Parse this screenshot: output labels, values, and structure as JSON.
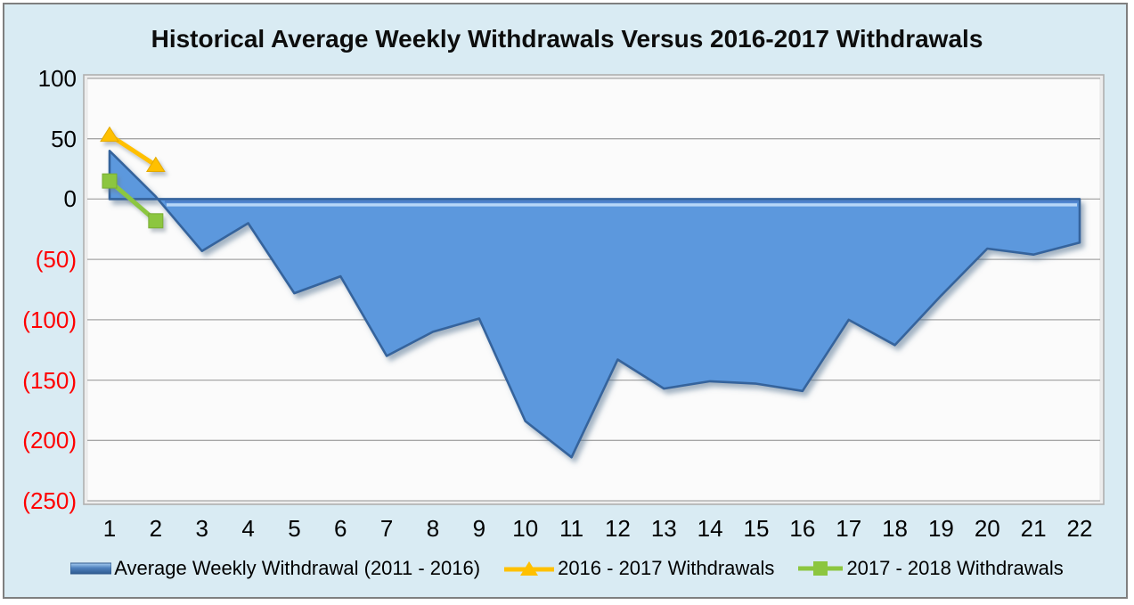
{
  "title": "Historical Average Weekly Withdrawals Versus 2016-2017 Withdrawals",
  "colors": {
    "chart_background": "#d9ebf3",
    "chart_border": "#7f7f7f",
    "plot_background": "#fbfbfb",
    "plot_border": "#b0b0b0",
    "gridline": "#a6a6a6",
    "area_fill": "#5b98dd",
    "area_edge": "#36649c",
    "area_highlight": "#b8d7f8",
    "series_2016_2017": "#ffc000",
    "series_2017_2018": "#8cc63f",
    "ylabel_positive": "#000000",
    "ylabel_negative": "#fe0000"
  },
  "chart_data": {
    "type": "area",
    "title": "Historical Average Weekly Withdrawals Versus 2016-2017 Withdrawals",
    "xlabel": "",
    "ylabel": "",
    "x": [
      1,
      2,
      3,
      4,
      5,
      6,
      7,
      8,
      9,
      10,
      11,
      12,
      13,
      14,
      15,
      16,
      17,
      18,
      19,
      20,
      21,
      22
    ],
    "ylim": [
      -250,
      100
    ],
    "grid": true,
    "legend_position": "bottom",
    "yticks": [
      {
        "value": 100,
        "label": "100"
      },
      {
        "value": 50,
        "label": "50"
      },
      {
        "value": 0,
        "label": "0"
      },
      {
        "value": -50,
        "label": "(50)"
      },
      {
        "value": -100,
        "label": "(100)"
      },
      {
        "value": -150,
        "label": "(150)"
      },
      {
        "value": -200,
        "label": "(200)"
      },
      {
        "value": -250,
        "label": "(250)"
      }
    ],
    "series": [
      {
        "name": "Average Weekly Withdrawal (2011 - 2016)",
        "type": "area",
        "marker": "none",
        "color": "#5b98dd",
        "values": [
          40,
          2,
          -43,
          -20,
          -78,
          -64,
          -130,
          -110,
          -99,
          -184,
          -214,
          -133,
          -157,
          -151,
          -153,
          -159,
          -100,
          -121,
          -80,
          -41,
          -46,
          -36
        ]
      },
      {
        "name": "2016 - 2017 Withdrawals",
        "type": "line",
        "marker": "triangle",
        "color": "#ffc000",
        "values": [
          53,
          28
        ]
      },
      {
        "name": "2017 - 2018 Withdrawals",
        "type": "line",
        "marker": "square",
        "color": "#8cc63f",
        "values": [
          15,
          -18
        ]
      }
    ]
  }
}
